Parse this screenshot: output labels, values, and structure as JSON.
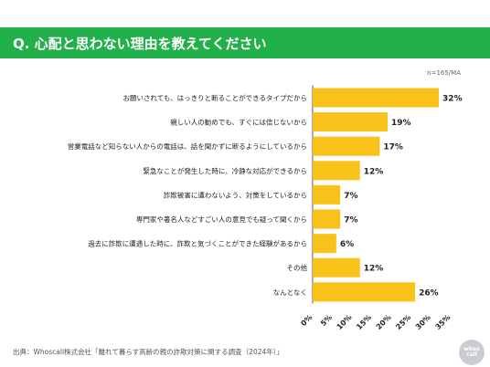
{
  "header": {
    "title": "Q. 心配と思わない理由を教えてください"
  },
  "note": "n=165/MA",
  "footer": {
    "source": "出典：Whoscall株式会社「離れて暮らす高齢の親の詐欺対策に関する調査（2024年）」"
  },
  "logo": {
    "line1": "whos",
    "line2": "call"
  },
  "colors": {
    "header_bg": "#21b04a",
    "bar": "#f9c21b",
    "axis": "#555555"
  },
  "chart_data": {
    "type": "bar",
    "orientation": "horizontal",
    "categories": [
      "お願いされても、はっきりと断ることができるタイプだから",
      "親しい人の勧めでも、すぐには信じないから",
      "営業電話など知らない人からの電話は、話を聞かずに断るようにしているから",
      "緊急なことが発生した時に、冷静な対応ができるから",
      "詐欺被害に遭わないよう、対策をしているから",
      "専門家や著名人などすごい人の意見でも疑って聞くから",
      "過去に詐欺に遭遇した時に、詐欺と気づくことができた経験があるから",
      "その他",
      "なんとなく"
    ],
    "values": [
      32,
      19,
      17,
      12,
      7,
      7,
      6,
      12,
      26
    ],
    "value_labels": [
      "32%",
      "19%",
      "17%",
      "12%",
      "7%",
      "7%",
      "6%",
      "12%",
      "26%"
    ],
    "xlim": [
      0,
      35
    ],
    "xticks": [
      0,
      5,
      10,
      15,
      20,
      25,
      30,
      35
    ],
    "xtick_labels": [
      "0%",
      "5%",
      "10%",
      "15%",
      "20%",
      "25%",
      "30%",
      "35%"
    ],
    "grid": false,
    "legend": "none"
  }
}
